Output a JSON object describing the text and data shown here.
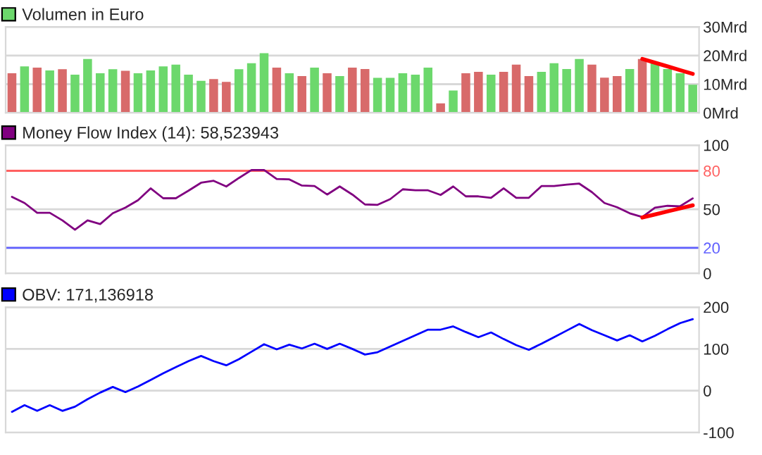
{
  "chart_data": [
    {
      "type": "bar",
      "categories": [
        null,
        null,
        null,
        null,
        null,
        null,
        null,
        null,
        null,
        null,
        null,
        null,
        null,
        null,
        null,
        null,
        null,
        null,
        null,
        null,
        null,
        null,
        null,
        null,
        null,
        null,
        null,
        null,
        null,
        null,
        null,
        null,
        null,
        null,
        null,
        null,
        null,
        null,
        null,
        null,
        null,
        null,
        null,
        null,
        null,
        null,
        null,
        null,
        null,
        null,
        null,
        null,
        null,
        null,
        null
      ],
      "series": [
        {
          "name": "Volumen in Euro",
          "type": "bar",
          "color": "#6cd86c",
          "colors": [
            "#d86a6a",
            "#6cd86c",
            "#d86a6a",
            "#6cd86c",
            "#d86a6a",
            "#6cd86c",
            "#6cd86c",
            "#6cd86c",
            "#6cd86c",
            "#d86a6a",
            "#6cd86c",
            "#6cd86c",
            "#6cd86c",
            "#6cd86c",
            "#6cd86c",
            "#6cd86c",
            "#d86a6a",
            "#d86a6a",
            "#6cd86c",
            "#6cd86c",
            "#6cd86c",
            "#d86a6a",
            "#6cd86c",
            "#d86a6a",
            "#6cd86c",
            "#d86a6a",
            "#6cd86c",
            "#d86a6a",
            "#d86a6a",
            "#6cd86c",
            "#6cd86c",
            "#6cd86c",
            "#6cd86c",
            "#6cd86c",
            "#d86a6a",
            "#6cd86c",
            "#d86a6a",
            "#d86a6a",
            "#6cd86c",
            "#d86a6a",
            "#d86a6a",
            "#d86a6a",
            "#6cd86c",
            "#6cd86c",
            "#6cd86c",
            "#6cd86c",
            "#d86a6a",
            "#d86a6a",
            "#d86a6a",
            "#6cd86c",
            "#d86a6a",
            "#6cd86c",
            "#6cd86c",
            "#6cd86c",
            "#6cd86c"
          ],
          "values": [
            13.8,
            16.2,
            15.8,
            14.8,
            15.2,
            13.3,
            18.8,
            13.8,
            15.2,
            14.7,
            13.8,
            14.8,
            16.2,
            16.8,
            13.3,
            11.2,
            11.8,
            10.8,
            15.2,
            17.3,
            20.8,
            15.8,
            13.8,
            12.8,
            15.8,
            13.8,
            12.8,
            15.8,
            15.3,
            12.2,
            12.2,
            13.8,
            13.3,
            15.8,
            3.3,
            7.8,
            13.8,
            14.3,
            13.3,
            14.3,
            16.8,
            12.8,
            14.3,
            17.3,
            15.3,
            18.8,
            16.8,
            12.3,
            12.8,
            15.3,
            18.8,
            17.3,
            15.3,
            13.8,
            9.8
          ]
        },
        {
          "type": "line",
          "color": "#ff0000",
          "values": [
            null,
            null,
            null,
            null,
            null,
            null,
            null,
            null,
            null,
            null,
            null,
            null,
            null,
            null,
            null,
            null,
            null,
            null,
            null,
            null,
            null,
            null,
            null,
            null,
            null,
            null,
            null,
            null,
            null,
            null,
            null,
            null,
            null,
            null,
            null,
            null,
            null,
            null,
            null,
            null,
            null,
            null,
            null,
            null,
            null,
            null,
            null,
            null,
            null,
            null,
            18.8,
            17.5,
            16.2,
            14.9,
            13.6
          ]
        }
      ],
      "ylim": [
        0,
        30
      ],
      "yticks": [
        {
          "value": 0,
          "label": "0Mrd"
        },
        {
          "value": 10,
          "label": "10Mrd"
        },
        {
          "value": 20,
          "label": "20Mrd"
        },
        {
          "value": 30,
          "label": "30Mrd"
        }
      ],
      "grid": "y",
      "legend": "top left",
      "tick_labels": "y"
    },
    {
      "type": "line",
      "categories": [
        null,
        null,
        null,
        null,
        null,
        null,
        null,
        null,
        null,
        null,
        null,
        null,
        null,
        null,
        null,
        null,
        null,
        null,
        null,
        null,
        null,
        null,
        null,
        null,
        null,
        null,
        null,
        null,
        null,
        null,
        null,
        null,
        null,
        null,
        null,
        null,
        null,
        null,
        null,
        null,
        null,
        null,
        null,
        null,
        null,
        null,
        null,
        null,
        null,
        null,
        null,
        null,
        null,
        null,
        null
      ],
      "series": [
        {
          "name": "Money Flow Index (14): 58,523943",
          "color": "#800080",
          "values": [
            59.7,
            54.9,
            47.3,
            47.3,
            41.4,
            34.1,
            41.4,
            38.5,
            46.9,
            51.3,
            57.1,
            66.3,
            58.6,
            58.6,
            64.5,
            70.7,
            72.2,
            67.8,
            74.4,
            80.6,
            80.6,
            73.6,
            73.3,
            68.5,
            68.1,
            61.5,
            67.8,
            61.5,
            53.8,
            53.5,
            57.9,
            65.6,
            64.8,
            64.8,
            61.2,
            67.8,
            60.1,
            60.1,
            59.0,
            66.3,
            59.0,
            59.0,
            68.1,
            68.1,
            69.2,
            70.0,
            63.4,
            54.9,
            51.6,
            46.9,
            44.0,
            51.3,
            52.7,
            52.4,
            58.5
          ]
        },
        {
          "color": "#ff0000",
          "values": [
            null,
            null,
            null,
            null,
            null,
            null,
            null,
            null,
            null,
            null,
            null,
            null,
            null,
            null,
            null,
            null,
            null,
            null,
            null,
            null,
            null,
            null,
            null,
            null,
            null,
            null,
            null,
            null,
            null,
            null,
            null,
            null,
            null,
            null,
            null,
            null,
            null,
            null,
            null,
            null,
            null,
            null,
            null,
            null,
            null,
            null,
            null,
            null,
            null,
            null,
            43.6,
            46.0,
            48.4,
            50.7,
            53.1
          ]
        }
      ],
      "ylim": [
        0,
        100
      ],
      "yticks": [
        0,
        20,
        50,
        80,
        100
      ],
      "ref_lines": [
        {
          "axis": "y",
          "value": 80,
          "color": "#ff6060"
        },
        {
          "axis": "y",
          "value": 20,
          "color": "#6060ff"
        }
      ],
      "grid": "y",
      "legend": "top left",
      "tick_labels": "y"
    },
    {
      "type": "line",
      "categories": [
        null,
        null,
        null,
        null,
        null,
        null,
        null,
        null,
        null,
        null,
        null,
        null,
        null,
        null,
        null,
        null,
        null,
        null,
        null,
        null,
        null,
        null,
        null,
        null,
        null,
        null,
        null,
        null,
        null,
        null,
        null,
        null,
        null,
        null,
        null,
        null,
        null,
        null,
        null,
        null,
        null,
        null,
        null,
        null,
        null,
        null,
        null,
        null,
        null,
        null,
        null,
        null,
        null,
        null,
        null
      ],
      "series": [
        {
          "name": "OBV: 171,136918",
          "color": "#0000ff",
          "values": [
            -50.6,
            -34.8,
            -48.3,
            -34.8,
            -48.3,
            -38.2,
            -20.2,
            -4.5,
            9.0,
            -3.4,
            10.1,
            25.8,
            41.6,
            56.2,
            70.8,
            83.1,
            70.8,
            60.7,
            75.3,
            93.3,
            111.2,
            98.9,
            110.1,
            101.1,
            112.4,
            100.0,
            112.4,
            100.0,
            86.5,
            92.1,
            105.6,
            119.1,
            132.6,
            146.1,
            146.1,
            153.9,
            140.4,
            128.1,
            139.3,
            123.6,
            109.0,
            97.8,
            112.4,
            128.1,
            143.8,
            159.6,
            144.9,
            132.6,
            120.2,
            132.6,
            118.0,
            131.5,
            147.2,
            161.8,
            171.1
          ]
        }
      ],
      "ylim": [
        -100,
        200
      ],
      "yticks": [
        -100,
        0,
        100,
        200
      ],
      "grid": "y",
      "legend": "top left",
      "tick_labels": "y"
    }
  ]
}
